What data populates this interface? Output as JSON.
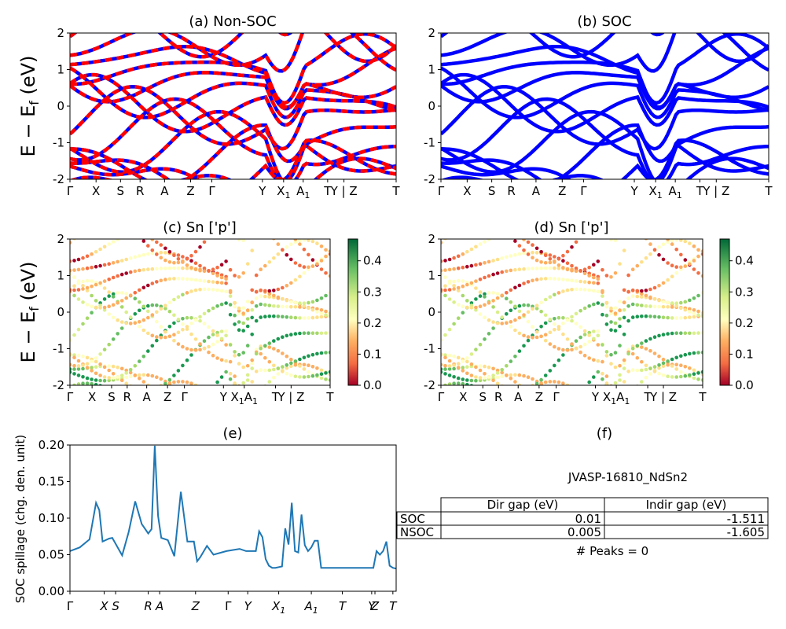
{
  "figure": {
    "panels": {
      "a": {
        "title": "(a) Non-SOC"
      },
      "b": {
        "title": "(b) SOC"
      },
      "c": {
        "title": "(c)  Sn ['p']"
      },
      "d": {
        "title": "(d) Sn ['p']"
      },
      "e": {
        "title": "(e)"
      },
      "f": {
        "title": "(f)"
      }
    },
    "band_ylabel_main": "E − E",
    "band_ylabel_sub": "f",
    "band_ylabel_unit": " (eV)",
    "spillage_ylabel": "SOC spillage (chg. den. unit)",
    "colorbar_ticks": [
      "0.0",
      "0.1",
      "0.2",
      "0.3",
      "0.4"
    ],
    "colors": {
      "non_soc": "#ff0000",
      "soc": "#0000ff",
      "spillage_line": "#1f77b4"
    }
  },
  "info": {
    "material": "JVASP-16810_NdSn2",
    "table": {
      "headers": [
        "Dir gap (eV)",
        "Indir gap (eV)"
      ],
      "rows": [
        {
          "label": "SOC",
          "dir": "0.01",
          "indir": "-1.511"
        },
        {
          "label": "NSOC",
          "dir": "0.005",
          "indir": "-1.605"
        }
      ]
    },
    "peaks": "# Peaks = 0"
  },
  "chart_data": [
    {
      "type": "line",
      "title": "(a) Non-SOC",
      "ylabel": "E − E_f (eV)",
      "ylim": [
        -2,
        2
      ],
      "yticks": [
        -2,
        -1,
        0,
        1,
        2
      ],
      "xticks": [
        "Γ",
        "X",
        "S",
        "R",
        "A",
        "Z",
        "Γ",
        "Y",
        "X1",
        "A1",
        "T",
        "Y | Z",
        "T"
      ],
      "series": [
        {
          "values": "band structure (many bands)"
        }
      ]
    },
    {
      "type": "line",
      "title": "(b) SOC",
      "ylim": [
        -2,
        2
      ],
      "yticks": [
        -2,
        -1,
        0,
        1,
        2
      ],
      "xticks": [
        "Γ",
        "X",
        "S",
        "R",
        "A",
        "Z",
        "Γ",
        "Y",
        "X1",
        "A1",
        "T",
        "Y | Z",
        "T"
      ]
    },
    {
      "type": "scatter",
      "title": "(c)  Sn ['p']",
      "ylabel": "E − E_f (eV)",
      "ylim": [
        -2,
        2
      ],
      "yticks": [
        -2,
        -1,
        0,
        1,
        2
      ],
      "colorbar": {
        "min": 0.0,
        "max": 0.47,
        "ticks": [
          0.0,
          0.1,
          0.2,
          0.3,
          0.4
        ]
      },
      "xticks": [
        "Γ",
        "X",
        "S",
        "R",
        "A",
        "Z",
        "Γ",
        "Y",
        "X1A1",
        "T",
        "Y | Z",
        "T"
      ]
    },
    {
      "type": "scatter",
      "title": "(d) Sn ['p']",
      "ylim": [
        -2,
        2
      ],
      "yticks": [
        -2,
        -1,
        0,
        1,
        2
      ],
      "colorbar": {
        "min": 0.0,
        "max": 0.47,
        "ticks": [
          0.0,
          0.1,
          0.2,
          0.3,
          0.4
        ]
      },
      "xticks": [
        "Γ",
        "X",
        "S",
        "R",
        "A",
        "Z",
        "Γ",
        "Y",
        "X1A1",
        "T",
        "Y | Z",
        "T"
      ]
    },
    {
      "type": "line",
      "title": "(e)",
      "ylabel": "SOC spillage (chg. den. unit)",
      "ylim": [
        0,
        0.2
      ],
      "yticks": [
        "0.00",
        "0.05",
        "0.10",
        "0.15",
        "0.20"
      ],
      "xticks": [
        "Γ",
        "X",
        "S",
        "R",
        "A",
        "Z",
        "Γ",
        "Y",
        "X1",
        "A1",
        "T",
        "Y",
        "Z",
        "T"
      ],
      "x": [
        0.0,
        0.03,
        0.06,
        0.08,
        0.09,
        0.1,
        0.12,
        0.13,
        0.16,
        0.18,
        0.2,
        0.22,
        0.24,
        0.25,
        0.26,
        0.27,
        0.28,
        0.3,
        0.32,
        0.34,
        0.36,
        0.37,
        0.38,
        0.39,
        0.4,
        0.42,
        0.44,
        0.48,
        0.52,
        0.54,
        0.57,
        0.58,
        0.59,
        0.6,
        0.61,
        0.62,
        0.63,
        0.64,
        0.65,
        0.66,
        0.67,
        0.68,
        0.69,
        0.7,
        0.71,
        0.72,
        0.73,
        0.74,
        0.75,
        0.76,
        0.77,
        0.78,
        0.8,
        0.85,
        0.9,
        0.93,
        0.94,
        0.95,
        0.96,
        0.97,
        0.98,
        0.99,
        1.0
      ],
      "values": [
        0.055,
        0.06,
        0.071,
        0.121,
        0.111,
        0.068,
        0.072,
        0.073,
        0.049,
        0.081,
        0.123,
        0.092,
        0.079,
        0.085,
        0.199,
        0.103,
        0.073,
        0.07,
        0.048,
        0.136,
        0.068,
        0.068,
        0.068,
        0.041,
        0.047,
        0.062,
        0.05,
        0.055,
        0.058,
        0.055,
        0.055,
        0.082,
        0.074,
        0.044,
        0.035,
        0.032,
        0.032,
        0.033,
        0.034,
        0.086,
        0.064,
        0.121,
        0.055,
        0.053,
        0.105,
        0.063,
        0.055,
        0.06,
        0.069,
        0.069,
        0.032,
        0.032,
        0.032,
        0.032,
        0.032,
        0.032,
        0.055,
        0.05,
        0.055,
        0.068,
        0.035,
        0.032,
        0.031
      ]
    }
  ]
}
